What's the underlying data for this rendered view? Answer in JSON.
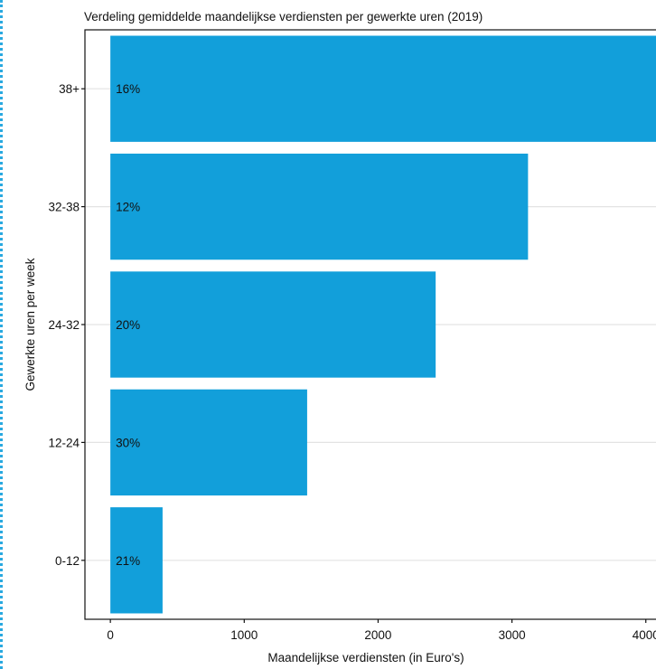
{
  "chart_data": {
    "type": "bar",
    "orientation": "horizontal",
    "title": "Verdeling gemiddelde maandelijkse verdiensten per gewerkte uren (2019)",
    "xlabel": "Maandelijkse verdiensten (in Euro's)",
    "ylabel": "Gewerkte uren per week",
    "categories": [
      "38+",
      "32-38",
      "24-32",
      "12-24",
      "0-12"
    ],
    "values": [
      4100,
      3120,
      2430,
      1470,
      390
    ],
    "bar_labels": [
      "16%",
      "12%",
      "20%",
      "30%",
      "21%"
    ],
    "x_ticks": [
      "0",
      "1000",
      "2000",
      "3000",
      "4000"
    ],
    "x_tick_values": [
      0,
      1000,
      2000,
      3000,
      4000
    ],
    "xlim": [
      -190,
      4130
    ],
    "grid": "horizontal",
    "bar_color": "#129fda"
  }
}
